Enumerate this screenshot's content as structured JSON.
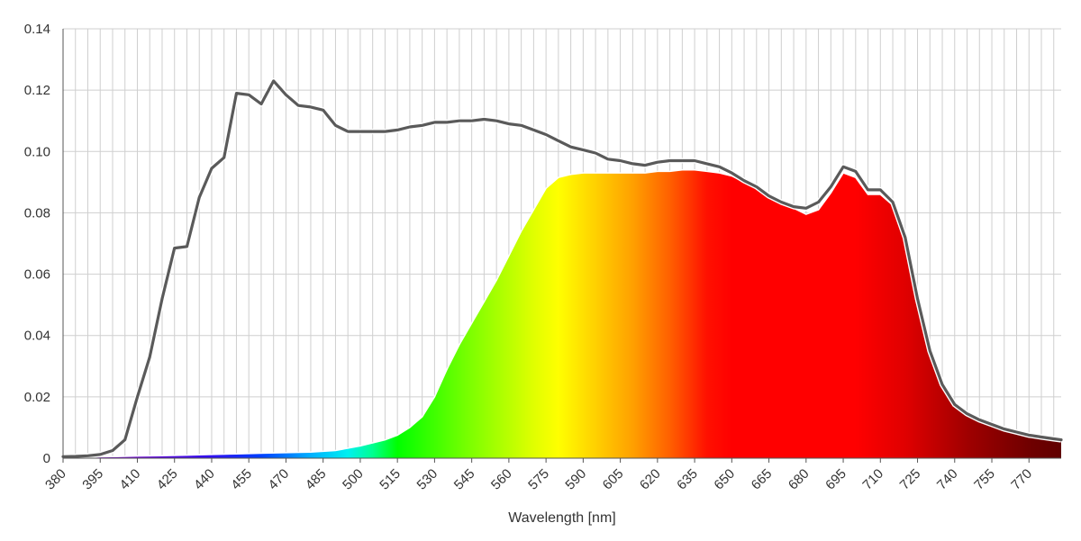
{
  "chart_data": {
    "type": "area",
    "title": "",
    "xlabel": "Wavelength [nm]",
    "ylabel": "",
    "xlim": [
      380,
      783
    ],
    "ylim": [
      0,
      0.14
    ],
    "grid": true,
    "legend": "none",
    "x_ticks": [
      380,
      395,
      410,
      425,
      440,
      455,
      470,
      485,
      500,
      515,
      530,
      545,
      560,
      575,
      590,
      605,
      620,
      635,
      650,
      665,
      680,
      695,
      710,
      725,
      740,
      755,
      770
    ],
    "y_ticks": [
      0,
      0.02,
      0.04,
      0.06,
      0.08,
      0.1,
      0.12,
      0.14
    ],
    "y_tick_labels": [
      "0",
      "0.02",
      "0.04",
      "0.06",
      "0.08",
      "0.10",
      "0.12",
      "0.14"
    ],
    "series": [
      {
        "style": "line",
        "color": "#5a5a5a",
        "x": [
          380,
          385,
          390,
          395,
          400,
          405,
          410,
          415,
          420,
          425,
          430,
          435,
          440,
          445,
          450,
          455,
          460,
          465,
          470,
          475,
          480,
          485,
          490,
          495,
          500,
          505,
          510,
          515,
          520,
          525,
          530,
          535,
          540,
          545,
          550,
          555,
          560,
          565,
          570,
          575,
          580,
          585,
          590,
          595,
          600,
          605,
          610,
          615,
          620,
          625,
          630,
          635,
          640,
          645,
          650,
          655,
          660,
          665,
          670,
          675,
          680,
          685,
          690,
          695,
          700,
          705,
          710,
          715,
          720,
          725,
          730,
          735,
          740,
          745,
          750,
          755,
          760,
          765,
          770,
          775,
          780,
          783
        ],
        "y": [
          0.0005,
          0.0006,
          0.0008,
          0.0012,
          0.0025,
          0.006,
          0.02,
          0.033,
          0.052,
          0.0685,
          0.069,
          0.085,
          0.0945,
          0.098,
          0.119,
          0.1185,
          0.1155,
          0.123,
          0.1185,
          0.115,
          0.1145,
          0.1135,
          0.1085,
          0.1065,
          0.1065,
          0.1065,
          0.1065,
          0.107,
          0.108,
          0.1085,
          0.1095,
          0.1095,
          0.11,
          0.11,
          0.1105,
          0.11,
          0.109,
          0.1085,
          0.107,
          0.1055,
          0.1035,
          0.1015,
          0.1005,
          0.0995,
          0.0975,
          0.097,
          0.096,
          0.0955,
          0.0965,
          0.097,
          0.097,
          0.097,
          0.096,
          0.095,
          0.093,
          0.0905,
          0.0885,
          0.0855,
          0.0835,
          0.082,
          0.0815,
          0.0835,
          0.0885,
          0.095,
          0.0935,
          0.0875,
          0.0875,
          0.0835,
          0.072,
          0.052,
          0.035,
          0.024,
          0.0175,
          0.0145,
          0.0125,
          0.011,
          0.0095,
          0.0085,
          0.0075,
          0.0069,
          0.0063,
          0.006
        ]
      },
      {
        "style": "spectral-area",
        "x": [
          380,
          390,
          400,
          410,
          420,
          430,
          440,
          450,
          460,
          470,
          480,
          490,
          500,
          505,
          510,
          515,
          520,
          525,
          530,
          535,
          540,
          545,
          550,
          555,
          560,
          565,
          570,
          575,
          580,
          585,
          590,
          595,
          600,
          605,
          610,
          615,
          620,
          625,
          630,
          635,
          640,
          645,
          650,
          655,
          660,
          665,
          670,
          675,
          680,
          685,
          690,
          695,
          700,
          705,
          710,
          715,
          720,
          725,
          730,
          735,
          740,
          745,
          750,
          755,
          760,
          765,
          770,
          775,
          780,
          783
        ],
        "y": [
          0.0003,
          0.0004,
          0.0005,
          0.0007,
          0.0008,
          0.001,
          0.0012,
          0.0014,
          0.0016,
          0.0018,
          0.002,
          0.0025,
          0.004,
          0.005,
          0.006,
          0.0075,
          0.01,
          0.0135,
          0.02,
          0.029,
          0.037,
          0.044,
          0.051,
          0.058,
          0.066,
          0.074,
          0.081,
          0.088,
          0.0915,
          0.0925,
          0.093,
          0.093,
          0.093,
          0.093,
          0.093,
          0.093,
          0.0935,
          0.0935,
          0.094,
          0.094,
          0.0935,
          0.093,
          0.092,
          0.09,
          0.088,
          0.0865,
          0.084,
          0.0815,
          0.0795,
          0.081,
          0.0865,
          0.093,
          0.0915,
          0.086,
          0.086,
          0.0825,
          0.07,
          0.051,
          0.034,
          0.0235,
          0.017,
          0.0143,
          0.0123,
          0.0108,
          0.0093,
          0.0083,
          0.0073,
          0.0068,
          0.0062,
          0.006
        ]
      }
    ]
  }
}
